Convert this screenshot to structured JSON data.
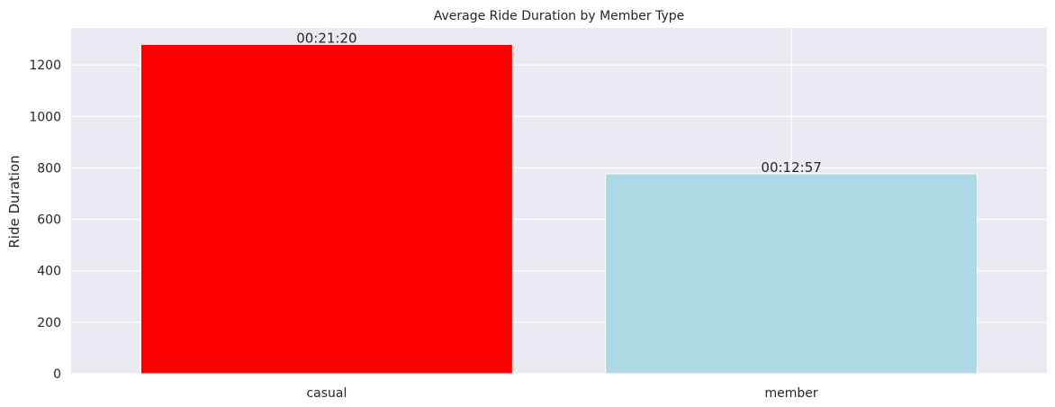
{
  "chart_data": {
    "type": "bar",
    "title": "Average Ride Duration by Member Type",
    "xlabel": "",
    "ylabel": "Ride Duration",
    "categories": [
      "casual",
      "member"
    ],
    "values": [
      1280,
      777
    ],
    "data_labels": [
      "00:21:20",
      "00:12:57"
    ],
    "bar_colors": [
      "#ff0000",
      "#add8e6"
    ],
    "ylim": [
      0,
      1344
    ],
    "yticks": [
      0,
      200,
      400,
      600,
      800,
      1000,
      1200
    ],
    "grid": true,
    "background_color": "#eaeaf2",
    "grid_color": "#ffffff"
  }
}
